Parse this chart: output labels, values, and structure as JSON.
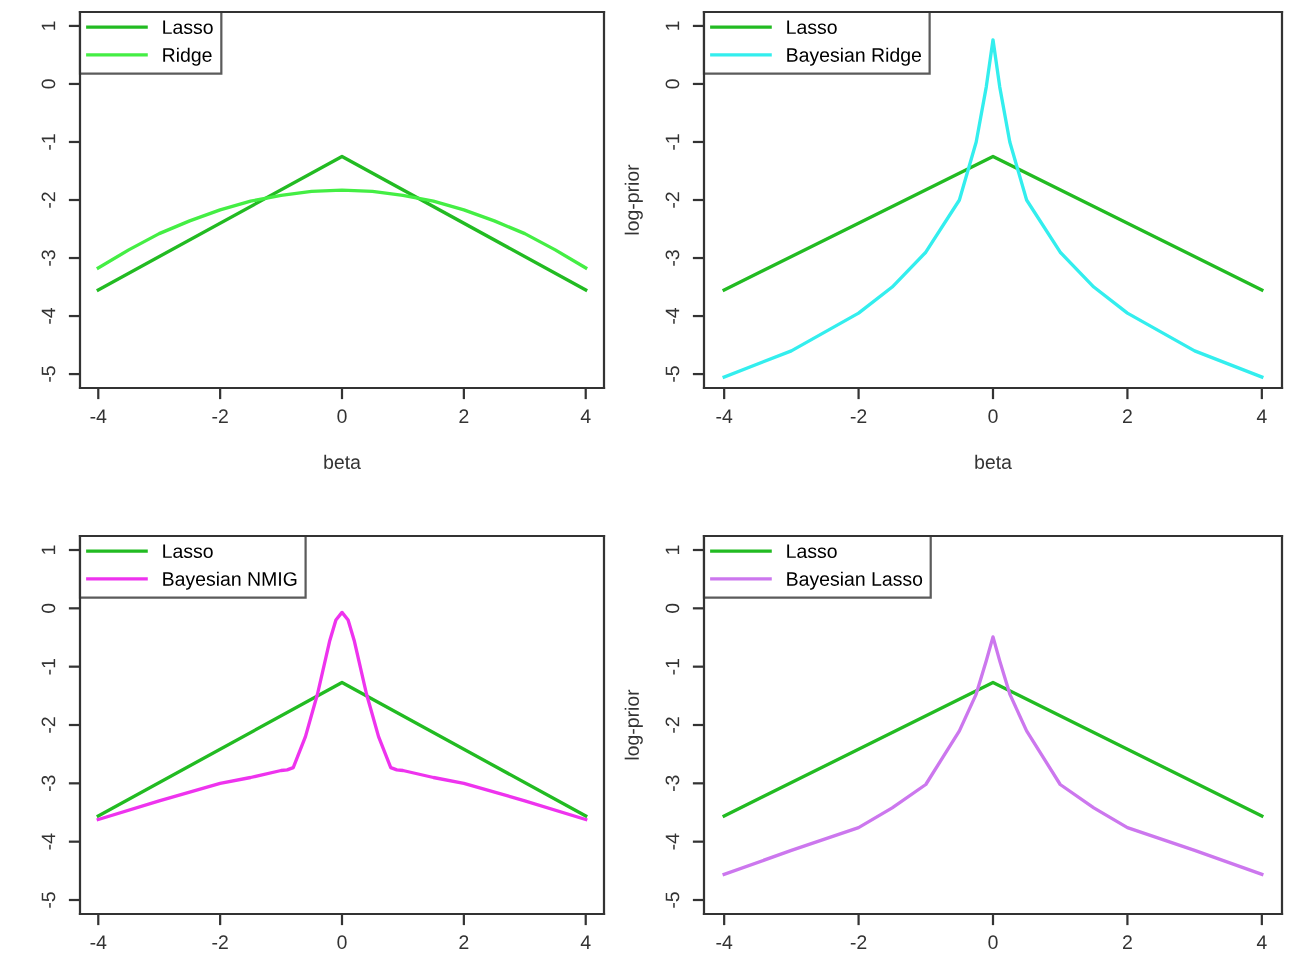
{
  "chart_data": [
    {
      "type": "line",
      "xlabel": "beta",
      "xlim": [
        -4.3,
        4.3
      ],
      "ylim": [
        -5.24,
        1.24
      ],
      "xticks": [
        -4,
        -2,
        0,
        2,
        4
      ],
      "yticks": [
        -5,
        -4,
        -3,
        -2,
        -1,
        0,
        1
      ],
      "legend": "top left",
      "grid": false,
      "line_style": "solid",
      "marker": "none",
      "series": [
        {
          "name": "Lasso",
          "color": "#22bb22",
          "x": [
            -4,
            0,
            4
          ],
          "values": [
            -3.55,
            -1.25,
            -3.55
          ]
        },
        {
          "name": "Ridge",
          "color": "#44ee44",
          "x": [
            -4,
            -3.5,
            -3,
            -2.5,
            -2,
            -1.5,
            -1,
            -0.5,
            0,
            0.5,
            1,
            1.5,
            2,
            2.5,
            3,
            3.5,
            4
          ],
          "values": [
            -3.17,
            -2.86,
            -2.58,
            -2.36,
            -2.17,
            -2.02,
            -1.92,
            -1.85,
            -1.83,
            -1.85,
            -1.92,
            -2.02,
            -2.17,
            -2.36,
            -2.58,
            -2.86,
            -3.17
          ]
        }
      ]
    },
    {
      "type": "line",
      "xlabel": "beta",
      "ylabel": "log-prior",
      "xlim": [
        -4.3,
        4.3
      ],
      "ylim": [
        -5.24,
        1.24
      ],
      "xticks": [
        -4,
        -2,
        0,
        2,
        4
      ],
      "yticks": [
        -5,
        -4,
        -3,
        -2,
        -1,
        0,
        1
      ],
      "legend": "top left",
      "grid": false,
      "line_style": "solid",
      "marker": "none",
      "series": [
        {
          "name": "Lasso",
          "color": "#22bb22",
          "x": [
            -4,
            0,
            4
          ],
          "values": [
            -3.55,
            -1.25,
            -3.55
          ]
        },
        {
          "name": "Bayesian Ridge",
          "color": "#33eeee",
          "x": [
            -4,
            -3,
            -2,
            -1.5,
            -1,
            -0.5,
            -0.25,
            -0.1,
            0,
            0.1,
            0.25,
            0.5,
            1,
            1.5,
            2,
            3,
            4
          ],
          "values": [
            -5.05,
            -4.6,
            -3.95,
            -3.5,
            -2.9,
            -2.0,
            -1.0,
            -0.05,
            0.76,
            -0.05,
            -1.0,
            -2.0,
            -2.9,
            -3.5,
            -3.95,
            -4.6,
            -5.05
          ]
        }
      ]
    },
    {
      "type": "line",
      "xlim": [
        -4.3,
        4.3
      ],
      "ylim": [
        -5.24,
        1.24
      ],
      "xticks": [
        -4,
        -2,
        0,
        2,
        4
      ],
      "yticks": [
        -5,
        -4,
        -3,
        -2,
        -1,
        0,
        1
      ],
      "legend": "top left",
      "grid": false,
      "line_style": "solid",
      "marker": "none",
      "series": [
        {
          "name": "Lasso",
          "color": "#22bb22",
          "x": [
            -4,
            0,
            4
          ],
          "values": [
            -3.56,
            -1.27,
            -3.56
          ]
        },
        {
          "name": "Bayesian NMIG",
          "color": "#ee33ee",
          "x": [
            -4,
            -3,
            -2,
            -1.5,
            -1,
            -0.9,
            -0.8,
            -0.6,
            -0.4,
            -0.2,
            -0.1,
            0,
            0.1,
            0.2,
            0.4,
            0.6,
            0.8,
            0.9,
            1,
            1.5,
            2,
            3,
            4
          ],
          "values": [
            -3.62,
            -3.3,
            -3.0,
            -2.9,
            -2.78,
            -2.77,
            -2.73,
            -2.2,
            -1.46,
            -0.55,
            -0.2,
            -0.07,
            -0.2,
            -0.55,
            -1.46,
            -2.2,
            -2.73,
            -2.77,
            -2.78,
            -2.9,
            -3.0,
            -3.3,
            -3.62
          ]
        }
      ]
    },
    {
      "type": "line",
      "ylabel": "log-prior",
      "xlim": [
        -4.3,
        4.3
      ],
      "ylim": [
        -5.24,
        1.24
      ],
      "xticks": [
        -4,
        -2,
        0,
        2,
        4
      ],
      "yticks": [
        -5,
        -4,
        -3,
        -2,
        -1,
        0,
        1
      ],
      "legend": "top left",
      "grid": false,
      "line_style": "solid",
      "marker": "none",
      "series": [
        {
          "name": "Lasso",
          "color": "#22bb22",
          "x": [
            -4,
            0,
            4
          ],
          "values": [
            -3.56,
            -1.27,
            -3.56
          ]
        },
        {
          "name": "Bayesian Lasso",
          "color": "#cc77ee",
          "x": [
            -4,
            -3,
            -2,
            -1.5,
            -1,
            -0.5,
            -0.25,
            -0.1,
            0,
            0.1,
            0.25,
            0.5,
            1,
            1.5,
            2,
            3,
            4
          ],
          "values": [
            -4.56,
            -4.15,
            -3.76,
            -3.42,
            -3.02,
            -2.1,
            -1.47,
            -0.9,
            -0.49,
            -0.9,
            -1.47,
            -2.1,
            -3.02,
            -3.42,
            -3.76,
            -4.15,
            -4.56
          ]
        }
      ]
    }
  ]
}
